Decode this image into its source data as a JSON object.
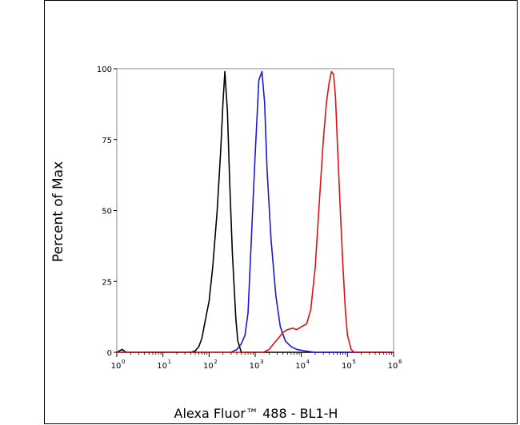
{
  "chart_data": {
    "type": "line",
    "title": "",
    "xlabel": "Alexa Fluor™ 488 - BL1-H",
    "ylabel": "Percent of Max",
    "x_scale": "log",
    "xlim": [
      1,
      1000000
    ],
    "ylim": [
      0,
      100
    ],
    "x_ticks": [
      {
        "value": 1,
        "base": "10",
        "exp": "0"
      },
      {
        "value": 10,
        "base": "10",
        "exp": "1"
      },
      {
        "value": 100,
        "base": "10",
        "exp": "2"
      },
      {
        "value": 1000,
        "base": "10",
        "exp": "3"
      },
      {
        "value": 10000,
        "base": "10",
        "exp": "4"
      },
      {
        "value": 100000,
        "base": "10",
        "exp": "5"
      },
      {
        "value": 1000000,
        "base": "10",
        "exp": "6"
      }
    ],
    "y_ticks": [
      {
        "value": 0,
        "label": "0"
      },
      {
        "value": 25,
        "label": "25"
      },
      {
        "value": 50,
        "label": "50"
      },
      {
        "value": 75,
        "label": "75"
      },
      {
        "value": 100,
        "label": "100"
      }
    ],
    "grid": false,
    "legend": "none",
    "series": [
      {
        "color": "#000000",
        "x": [
          1,
          1.3,
          1.6,
          2,
          10,
          40,
          50,
          60,
          70,
          80,
          100,
          120,
          150,
          180,
          200,
          220,
          250,
          280,
          320,
          380,
          420,
          500,
          1000000
        ],
        "y": [
          0,
          1,
          0,
          0,
          0,
          0,
          0.5,
          2,
          5,
          10,
          18,
          30,
          50,
          72,
          88,
          99,
          85,
          60,
          35,
          12,
          4,
          0,
          0
        ]
      },
      {
        "color": "#1a1acc",
        "x": [
          1,
          300,
          400,
          500,
          600,
          700,
          800,
          1000,
          1200,
          1400,
          1600,
          1800,
          2200,
          2800,
          3500,
          4500,
          6000,
          8000,
          12000,
          20000,
          1000000
        ],
        "y": [
          0,
          0,
          1,
          3,
          6,
          14,
          35,
          70,
          96,
          99,
          88,
          65,
          40,
          20,
          9,
          4,
          2,
          1,
          0.5,
          0,
          0
        ]
      },
      {
        "color": "#dd1111",
        "x": [
          1,
          1500,
          2000,
          2500,
          3200,
          4000,
          5000,
          6500,
          8000,
          10000,
          13000,
          16000,
          20000,
          25000,
          30000,
          35000,
          40000,
          45000,
          50000,
          55000,
          60000,
          70000,
          80000,
          90000,
          100000,
          120000,
          140000,
          160000,
          1000000
        ],
        "y": [
          0,
          0,
          1,
          3,
          5,
          7,
          8,
          8.5,
          8,
          9,
          10,
          15,
          30,
          55,
          75,
          88,
          95,
          99,
          98,
          90,
          75,
          50,
          30,
          15,
          6,
          1,
          0,
          0,
          0
        ]
      }
    ]
  }
}
